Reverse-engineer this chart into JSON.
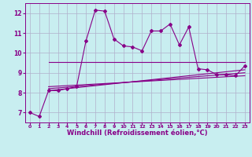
{
  "background_color": "#c8eef0",
  "grid_color": "#b0b0cc",
  "line_color": "#880088",
  "xlim": [
    -0.5,
    23.5
  ],
  "ylim": [
    6.5,
    12.5
  ],
  "xlabel": "Windchill (Refroidissement éolien,°C)",
  "xlabel_fontsize": 6.0,
  "xticks": [
    0,
    1,
    2,
    3,
    4,
    5,
    6,
    7,
    8,
    9,
    10,
    11,
    12,
    13,
    14,
    15,
    16,
    17,
    18,
    19,
    20,
    21,
    22,
    23
  ],
  "yticks": [
    7,
    8,
    9,
    10,
    11,
    12
  ],
  "series_main_x": [
    0,
    1,
    2,
    3,
    4,
    5,
    6,
    7,
    8,
    9,
    10,
    11,
    12,
    13,
    14,
    15,
    16,
    17,
    18,
    19,
    20,
    21,
    22,
    23
  ],
  "series_main_y": [
    7.0,
    6.8,
    8.1,
    8.1,
    8.2,
    8.3,
    10.6,
    12.15,
    12.1,
    10.7,
    10.35,
    10.3,
    10.1,
    11.1,
    11.1,
    11.45,
    10.4,
    11.3,
    9.2,
    9.15,
    8.9,
    8.9,
    8.85,
    9.35
  ],
  "lines": [
    {
      "x": [
        2,
        23
      ],
      "y": [
        9.55,
        9.55
      ]
    },
    {
      "x": [
        2,
        23
      ],
      "y": [
        8.1,
        9.15
      ]
    },
    {
      "x": [
        2,
        23
      ],
      "y": [
        8.2,
        9.0
      ]
    },
    {
      "x": [
        2,
        23
      ],
      "y": [
        8.3,
        8.85
      ]
    }
  ]
}
